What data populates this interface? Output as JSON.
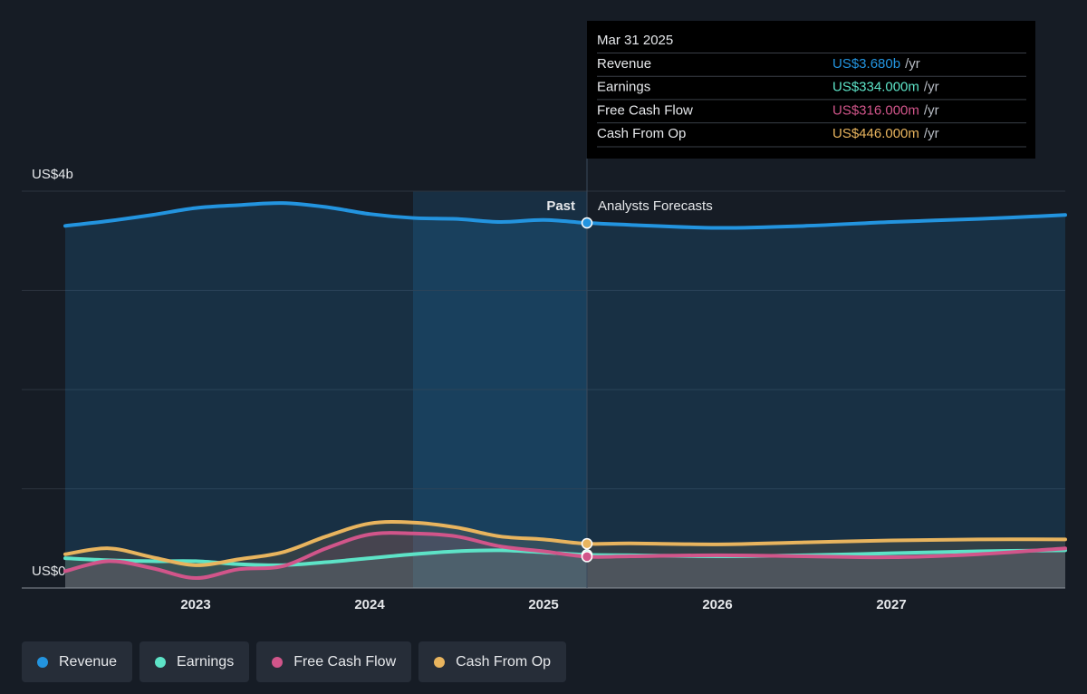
{
  "chart_data": {
    "type": "line",
    "x": [
      2022.25,
      2022.5,
      2022.75,
      2023.0,
      2023.25,
      2023.5,
      2023.75,
      2024.0,
      2024.25,
      2024.5,
      2024.75,
      2025.0,
      2025.25,
      2025.5,
      2026.0,
      2026.5,
      2027.0,
      2027.5,
      2028.0
    ],
    "series": [
      {
        "name": "Revenue",
        "color": "#2394df",
        "values": [
          3.65,
          3.7,
          3.76,
          3.83,
          3.86,
          3.88,
          3.84,
          3.77,
          3.73,
          3.72,
          3.69,
          3.71,
          3.68,
          3.66,
          3.63,
          3.65,
          3.69,
          3.72,
          3.76
        ]
      },
      {
        "name": "Earnings",
        "color": "#5de3c7",
        "values": [
          0.3,
          0.28,
          0.27,
          0.27,
          0.24,
          0.23,
          0.26,
          0.3,
          0.34,
          0.37,
          0.38,
          0.36,
          0.334,
          0.33,
          0.32,
          0.33,
          0.35,
          0.37,
          0.38
        ]
      },
      {
        "name": "Free Cash Flow",
        "color": "#d1558a",
        "values": [
          0.17,
          0.27,
          0.2,
          0.1,
          0.19,
          0.22,
          0.4,
          0.54,
          0.55,
          0.52,
          0.42,
          0.37,
          0.316,
          0.32,
          0.33,
          0.32,
          0.31,
          0.34,
          0.4
        ]
      },
      {
        "name": "Cash From Op",
        "color": "#e8b45e",
        "values": [
          0.34,
          0.4,
          0.31,
          0.23,
          0.29,
          0.36,
          0.52,
          0.65,
          0.66,
          0.61,
          0.52,
          0.49,
          0.446,
          0.45,
          0.44,
          0.46,
          0.48,
          0.49,
          0.49
        ]
      }
    ],
    "xlim": [
      2022,
      2028
    ],
    "xticks": [
      2023,
      2024,
      2025,
      2026,
      2027
    ],
    "ylim": [
      0,
      4
    ],
    "yticks": [
      {
        "value": 0,
        "label": "US$0"
      },
      {
        "value": 4,
        "label": "US$4b"
      }
    ],
    "ygrid": [
      0,
      1,
      2,
      3,
      4
    ],
    "past_label": "Past",
    "forecast_label": "Analysts Forecasts",
    "tooltip": {
      "date": "Mar 31 2025",
      "x": 2025.25,
      "unit": "/yr",
      "values": [
        3.68,
        0.334,
        0.316,
        0.446
      ],
      "value_labels": [
        "US$3.680b",
        "US$334.000m",
        "US$316.000m",
        "US$446.000m"
      ]
    }
  }
}
